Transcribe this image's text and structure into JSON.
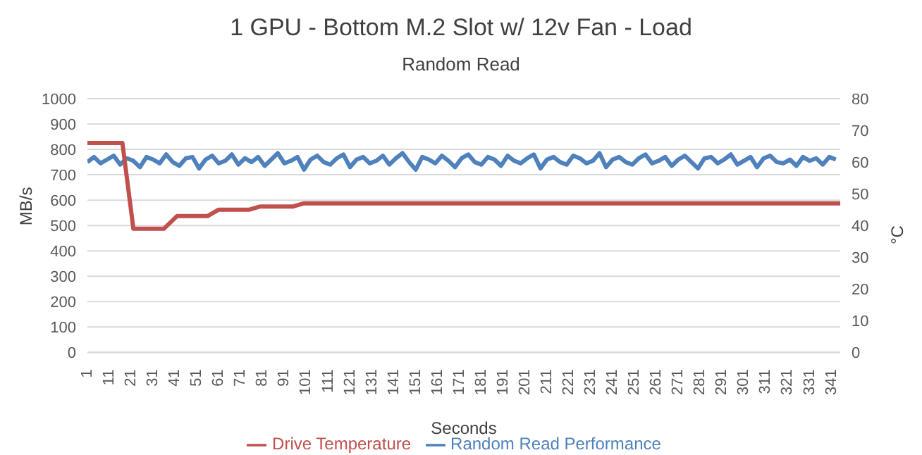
{
  "chart_data": {
    "type": "line",
    "title": "1 GPU - Bottom M.2 Slot w/ 12v Fan  - Load",
    "subtitle": "Random Read",
    "xlabel": "Seconds",
    "ylabel": "MB/s",
    "y2label": "°C",
    "xlim": [
      1,
      345
    ],
    "xticks": [
      1,
      11,
      21,
      31,
      41,
      51,
      61,
      71,
      81,
      91,
      101,
      111,
      121,
      131,
      141,
      151,
      161,
      171,
      181,
      191,
      201,
      211,
      221,
      231,
      241,
      251,
      261,
      271,
      281,
      291,
      301,
      311,
      321,
      331,
      341
    ],
    "ylim": [
      0,
      1000
    ],
    "yticks": [
      0,
      100,
      200,
      300,
      400,
      500,
      600,
      700,
      800,
      900,
      1000
    ],
    "y2lim": [
      0,
      80
    ],
    "y2ticks": [
      0,
      10,
      20,
      30,
      40,
      50,
      60,
      70,
      80
    ],
    "grid": "y",
    "legend": "bottom",
    "marker": "none",
    "line_style": "solid",
    "series": [
      {
        "name": "Random Read Performance",
        "color": "#4f81bd",
        "x": [
          1,
          4,
          7,
          10,
          13,
          16,
          19,
          22,
          25,
          28,
          31,
          34,
          37,
          40,
          43,
          46,
          49,
          52,
          55,
          58,
          61,
          64,
          67,
          70,
          73,
          76,
          79,
          82,
          85,
          88,
          91,
          94,
          97,
          100,
          103,
          106,
          109,
          112,
          115,
          118,
          121,
          124,
          127,
          130,
          133,
          136,
          139,
          142,
          145,
          148,
          151,
          154,
          157,
          160,
          163,
          166,
          169,
          172,
          175,
          178,
          181,
          184,
          187,
          190,
          193,
          196,
          199,
          202,
          205,
          208,
          211,
          214,
          217,
          220,
          223,
          226,
          229,
          232,
          235,
          238,
          241,
          244,
          247,
          250,
          253,
          256,
          259,
          262,
          265,
          268,
          271,
          274,
          277,
          280,
          283,
          286,
          289,
          292,
          295,
          298,
          301,
          304,
          307,
          310,
          313,
          316,
          319,
          322,
          325,
          328,
          331,
          334,
          337,
          340,
          343
        ],
        "values": [
          750,
          770,
          745,
          760,
          775,
          740,
          765,
          755,
          730,
          770,
          760,
          745,
          780,
          750,
          735,
          765,
          770,
          725,
          760,
          775,
          745,
          755,
          780,
          740,
          765,
          750,
          770,
          735,
          760,
          785,
          745,
          755,
          770,
          720,
          760,
          775,
          750,
          740,
          765,
          780,
          730,
          760,
          770,
          745,
          755,
          775,
          740,
          765,
          785,
          750,
          720,
          770,
          760,
          745,
          775,
          755,
          730,
          765,
          780,
          750,
          740,
          770,
          760,
          735,
          775,
          755,
          745,
          765,
          780,
          725,
          760,
          770,
          750,
          740,
          775,
          765,
          745,
          755,
          785,
          730,
          760,
          770,
          750,
          740,
          765,
          780,
          745,
          755,
          770,
          735,
          760,
          775,
          750,
          725,
          765,
          770,
          745,
          760,
          780,
          740,
          755,
          770,
          730,
          765,
          775,
          750,
          745,
          760,
          735,
          770,
          755,
          765,
          740,
          770,
          760
        ]
      },
      {
        "name": "Drive Temperature",
        "color": "#c0504d",
        "axis": "y2",
        "x": [
          1,
          17,
          22,
          36,
          42,
          56,
          61,
          75,
          80,
          95,
          100,
          345
        ],
        "values": [
          66,
          66,
          39,
          39,
          43,
          43,
          45,
          45,
          46,
          46,
          47,
          47
        ]
      }
    ]
  }
}
